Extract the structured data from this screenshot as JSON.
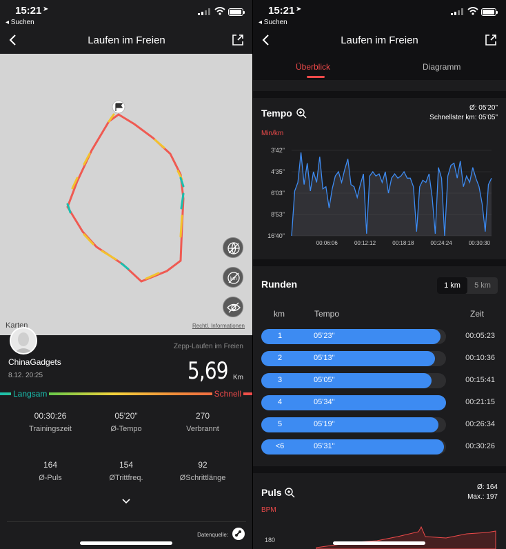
{
  "left": {
    "status": {
      "time": "15:21",
      "back_app": "◂ Suchen"
    },
    "nav": {
      "title": "Laufen im Freien"
    },
    "map": {
      "brand": "Karten",
      "legal": "Rechtl. Informationen"
    },
    "profile": {
      "name": "ChinaGadgets",
      "date": "8.12. 20:25"
    },
    "source_app": "Zepp-Laufen im Freien",
    "distance": {
      "value": "5,69",
      "unit": "Km"
    },
    "pace_legend": {
      "slow": "Langsam",
      "fast": "Schnell"
    },
    "stats": [
      {
        "value": "00:30:26",
        "label": "Trainingszeit"
      },
      {
        "value": "05'20\"",
        "label": "Ø-Tempo"
      },
      {
        "value": "270",
        "label": "Verbrannt"
      },
      {
        "value": "164",
        "label": "Ø-Puls"
      },
      {
        "value": "154",
        "label": "ØTrittfreq."
      },
      {
        "value": "92",
        "label": "ØSchrittlänge"
      }
    ],
    "data_source_label": "Datenquelle:"
  },
  "right": {
    "status": {
      "time": "15:21",
      "back_app": "◂ Suchen"
    },
    "nav": {
      "title": "Laufen im Freien"
    },
    "tabs": [
      {
        "label": "Überblick",
        "active": true
      },
      {
        "label": "Diagramm",
        "active": false
      }
    ],
    "tempo_card": {
      "title": "Tempo",
      "avg": "Ø: 05'20\"",
      "fastest": "Schnellster km: 05'05\"",
      "unit": "Min/km"
    },
    "laps_card": {
      "title": "Runden",
      "segments": [
        "1 km",
        "5 km"
      ],
      "columns": [
        "km",
        "Tempo",
        "Zeit"
      ],
      "rows": [
        {
          "km": "1",
          "tempo": "05'23\"",
          "time": "00:05:23",
          "fill": 0.97
        },
        {
          "km": "2",
          "tempo": "05'13\"",
          "time": "00:10:36",
          "fill": 0.94
        },
        {
          "km": "3",
          "tempo": "05'05\"",
          "time": "00:15:41",
          "fill": 0.92
        },
        {
          "km": "4",
          "tempo": "05'34\"",
          "time": "00:21:15",
          "fill": 1.0
        },
        {
          "km": "5",
          "tempo": "05'19\"",
          "time": "00:26:34",
          "fill": 0.96
        },
        {
          "km": "<6",
          "tempo": "05'31\"",
          "time": "00:30:26",
          "fill": 0.99
        }
      ]
    },
    "pulse_card": {
      "title": "Puls",
      "avg": "Ø: 164",
      "max": "Max.: 197",
      "unit": "BPM",
      "first_tick": "180"
    }
  },
  "chart_data": {
    "type": "area",
    "title": "Tempo",
    "ylabel": "Min/km",
    "xlabel": "",
    "y_ticks": [
      "3'42\"",
      "4'35\"",
      "6'03\"",
      "8'53\"",
      "16'40\""
    ],
    "x_ticks": [
      "00:06:06",
      "00:12:12",
      "00:18:18",
      "00:24:24",
      "00:30:30"
    ],
    "x_unit": "minutes",
    "y_unit": "tick index (0 = 3'42\", 4 = 16'40\")",
    "x": [
      0,
      0.5,
      1,
      1.5,
      2,
      2.5,
      3,
      3.5,
      4,
      4.5,
      5,
      5.5,
      6,
      6.5,
      7,
      7.5,
      8,
      8.5,
      9,
      9.5,
      10,
      10.5,
      11,
      11.5,
      12,
      12.5,
      13,
      13.5,
      14,
      14.5,
      15,
      15.5,
      16,
      16.5,
      17,
      17.5,
      18,
      18.5,
      19,
      19.5,
      20,
      20.5,
      21,
      21.5,
      22,
      22.5,
      23,
      23.5,
      24,
      24.5,
      25,
      25.5,
      26,
      26.5,
      27,
      27.5,
      28,
      28.5,
      29,
      29.5,
      30,
      30.5,
      31,
      31.5,
      32
    ],
    "y": [
      4.0,
      1.9,
      1.5,
      0.1,
      1.6,
      0.6,
      1.9,
      1.0,
      1.5,
      0.3,
      1.8,
      1.7,
      2.7,
      1.8,
      1.2,
      1.0,
      1.5,
      0.9,
      0.4,
      1.6,
      1.7,
      2.2,
      1.6,
      1.1,
      3.9,
      1.2,
      1.0,
      1.2,
      1.1,
      1.5,
      1.0,
      2.0,
      1.3,
      1.1,
      1.3,
      1.2,
      1.0,
      1.3,
      1.3,
      1.7,
      3.8,
      1.7,
      1.4,
      1.5,
      1.1,
      2.2,
      3.9,
      0.8,
      1.3,
      4.0,
      1.2,
      0.7,
      0.6,
      1.3,
      0.5,
      1.7,
      1.2,
      1.5,
      0.8,
      1.3,
      1.7,
      2.5,
      3.8,
      1.6,
      1.3
    ],
    "ylim": [
      0,
      4
    ],
    "color": "#3d8bf2"
  },
  "colors": {
    "accent": "#ef4a4a",
    "blue": "#3d8bf2",
    "route_red": "#ef5a52",
    "route_yellow": "#f2c32e",
    "route_teal": "#19c0b0"
  }
}
